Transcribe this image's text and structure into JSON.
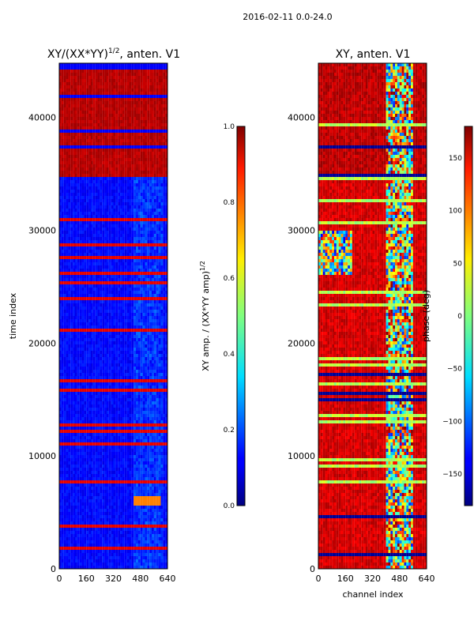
{
  "figure": {
    "suptitle": "2016-02-11 0.0-24.0"
  },
  "chart_data": [
    {
      "type": "heatmap",
      "title": "XY/(XX*YY)^{1/2}, anten. V1",
      "title_main": "XY/(XX*YY)",
      "title_sup": "1/2",
      "title_tail": ", anten. V1",
      "xlabel": "",
      "ylabel": "time index",
      "xlim": [
        0,
        640
      ],
      "ylim": [
        0,
        44800
      ],
      "xticks": [
        "0",
        "160",
        "320",
        "480",
        "640"
      ],
      "yticks": [
        "0",
        "10000",
        "20000",
        "30000",
        "40000"
      ],
      "xtick_values": [
        0,
        160,
        320,
        480,
        640
      ],
      "ytick_values": [
        0,
        10000,
        20000,
        30000,
        40000
      ],
      "colormap": "jet",
      "colorbar": {
        "label_main": "XY amp. / (XX*YY amp)",
        "label_sup": "1/2",
        "range": [
          0.0,
          1.0
        ],
        "ticks": [
          "0.0",
          "0.2",
          "0.4",
          "0.6",
          "0.8",
          "1.0"
        ],
        "tick_values": [
          0.0,
          0.2,
          0.4,
          0.6,
          0.8,
          1.0
        ]
      },
      "features": {
        "high_band_from_time_index": 34800,
        "high_band_value": 0.97,
        "background_value": 0.1,
        "bright_spot": {
          "channel_range": [
            440,
            600
          ],
          "time_range": [
            5500,
            6500
          ],
          "value": 0.75
        }
      }
    },
    {
      "type": "heatmap",
      "title": "XY, anten. V1",
      "xlabel": "channel index",
      "ylabel": "",
      "xlim": [
        0,
        640
      ],
      "ylim": [
        0,
        44800
      ],
      "xticks": [
        "0",
        "160",
        "320",
        "480",
        "640"
      ],
      "yticks": [
        "0",
        "10000",
        "20000",
        "30000",
        "40000"
      ],
      "xtick_values": [
        0,
        160,
        320,
        480,
        640
      ],
      "ytick_values": [
        0,
        10000,
        20000,
        30000,
        40000
      ],
      "colormap": "jet",
      "colorbar": {
        "label": "phase (deg)",
        "range": [
          -180,
          180
        ],
        "ticks": [
          "−150",
          "−100",
          "−50",
          "0",
          "50",
          "100",
          "150"
        ],
        "tick_values": [
          -150,
          -100,
          -50,
          0,
          50,
          100,
          150
        ]
      },
      "features": {
        "dominant_phase_deg": 150,
        "noisy_channel_range": [
          400,
          560
        ]
      }
    }
  ]
}
